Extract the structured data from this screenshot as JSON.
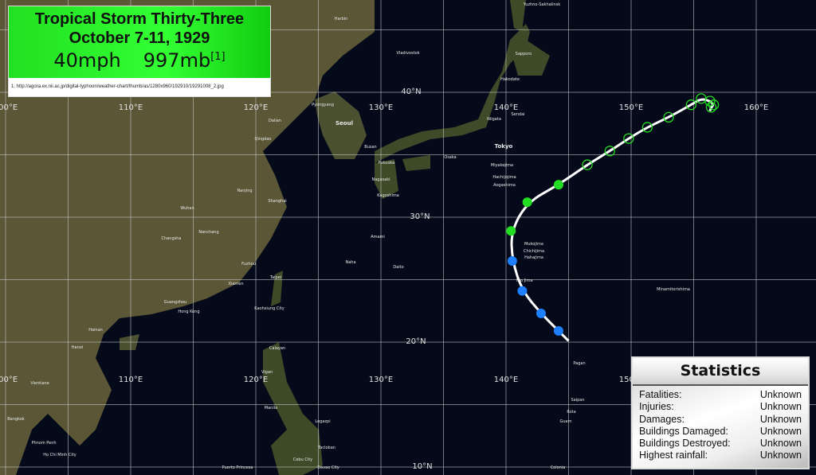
{
  "infobox": {
    "title": "Tropical Storm Thirty-Three",
    "dates": "October 7-11, 1929",
    "wind": "40mph",
    "pressure": "997mb",
    "ref_marker": "[1]",
    "reference": "1. http://agora.ex.nii.ac.jp/digital-typhoon/weather-chart/thumb/as/1280x960/192910/19291008_2.jpg",
    "color": "#33ff33"
  },
  "statistics": {
    "title": "Statistics",
    "rows": [
      {
        "label": "Fatalities:",
        "value": "Unknown"
      },
      {
        "label": "Injuries:",
        "value": "Unknown"
      },
      {
        "label": "Damages:",
        "value": "Unknown"
      },
      {
        "label": "Buildings Damaged:",
        "value": "Unknown"
      },
      {
        "label": "Buildings Destroyed:",
        "value": "Unknown"
      },
      {
        "label": "Highest rainfall:",
        "value": "Unknown"
      }
    ]
  },
  "grid": {
    "lon_labels_top": [
      "100°E",
      "110°E",
      "120°E",
      "130°E",
      "140°E",
      "150°E",
      "160°E"
    ],
    "lon_labels_bottom": [
      "100°E",
      "110°E",
      "120°E",
      "130°E",
      "140°E",
      "150°E"
    ],
    "lat_labels": [
      "40°N",
      "30°N",
      "20°N",
      "10°N"
    ]
  },
  "places": [
    "Tokyo",
    "Seoul",
    "Pyongyang",
    "Taipei",
    "Hong Kong",
    "Hanoi",
    "Manila",
    "Shanghai",
    "Vladivostok",
    "Sapporo",
    "Harbin",
    "Sendai",
    "Niigata",
    "Osaka",
    "Kagoshima",
    "Nagasaki",
    "Fukuoka",
    "Busan",
    "Iwo Jima",
    "Mukojima",
    "Chichijima",
    "Hahajima",
    "Hachijojima",
    "Aogashima",
    "Miyakejima",
    "Minamitorishima",
    "Daito",
    "Amami",
    "Naha",
    "Guam",
    "Saipan",
    "Rota",
    "Pagan",
    "Vientiane",
    "Bangkok",
    "Phnom Penh",
    "Ho Chi Minh City",
    "Hainan",
    "Qingdao",
    "Dalian",
    "Nanjing",
    "Wuhan",
    "Changsha",
    "Nanchang",
    "Fuzhou",
    "Xiamen",
    "Guangzhou",
    "Kaohsiung City",
    "Vigan",
    "Calayan",
    "Legazpi",
    "Cebu City",
    "Davao City",
    "Tacloban",
    "Puerto Princesa",
    "Yuzhno-Sakhalinsk",
    "Hakodate",
    "Colonia"
  ],
  "track": {
    "legend_colors": {
      "depression": "#1e7fff",
      "storm": "#22dd22",
      "extratropical": "#22dd22"
    },
    "points": [
      {
        "type": "depression",
        "lat": 20.9,
        "lon": 144.2
      },
      {
        "type": "depression",
        "lat": 22.3,
        "lon": 142.8
      },
      {
        "type": "depression",
        "lat": 24.1,
        "lon": 141.3
      },
      {
        "type": "depression",
        "lat": 26.5,
        "lon": 140.5
      },
      {
        "type": "storm",
        "lat": 28.9,
        "lon": 140.4
      },
      {
        "type": "storm",
        "lat": 31.2,
        "lon": 141.7
      },
      {
        "type": "storm",
        "lat": 32.6,
        "lon": 144.2
      },
      {
        "type": "extratropical",
        "lat": 34.2,
        "lon": 146.5
      },
      {
        "type": "extratropical",
        "lat": 35.3,
        "lon": 148.3
      },
      {
        "type": "extratropical",
        "lat": 36.3,
        "lon": 149.8
      },
      {
        "type": "extratropical",
        "lat": 37.2,
        "lon": 151.3
      },
      {
        "type": "extratropical",
        "lat": 38.0,
        "lon": 153.0
      },
      {
        "type": "extratropical",
        "lat": 39.0,
        "lon": 154.8
      },
      {
        "type": "extratropical",
        "lat": 39.5,
        "lon": 155.6
      },
      {
        "type": "extratropical",
        "lat": 39.3,
        "lon": 156.3
      },
      {
        "type": "extratropical",
        "lat": 39.0,
        "lon": 156.6
      },
      {
        "type": "extratropical",
        "lat": 38.8,
        "lon": 156.4
      }
    ]
  }
}
